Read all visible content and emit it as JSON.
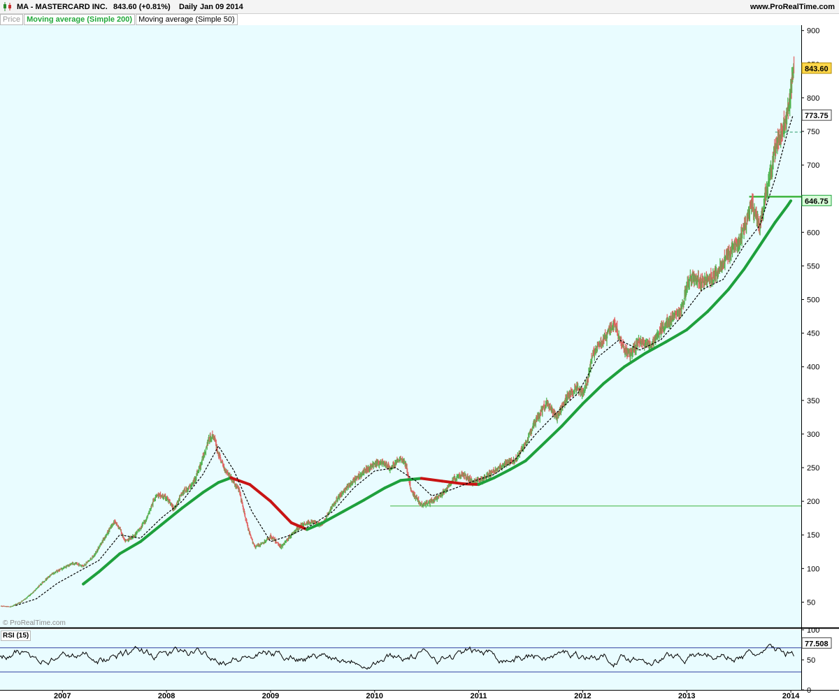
{
  "header": {
    "title": "MA - MASTERCARD INC.",
    "quote": "843.60 (+0.81%)",
    "period": "Daily",
    "date": "Jan 09 2014",
    "site": "www.ProRealTime.com"
  },
  "legend": {
    "price": "Price",
    "ma200": "Moving average (Simple 200)",
    "ma50": "Moving average (Simple 50)"
  },
  "copyright": "© ProRealTime.com",
  "colors": {
    "background": "#e9fcff",
    "up_candle": "#4fb34f",
    "down_candle": "#e06060",
    "ma200_rising": "#1ea03c",
    "ma200_falling": "#c81414",
    "ma50": "#000000",
    "level_line": "#3cb43c",
    "last_price_tag": "#ffd84a",
    "ma50_tag": "#ffffff",
    "ma200_tag": "#d8ffd8"
  },
  "chart_data": [
    {
      "type": "candlestick",
      "title": "MA - MASTERCARD INC.",
      "y_ticks": [
        900,
        850,
        800,
        750,
        700,
        650,
        600,
        550,
        500,
        450,
        400,
        350,
        300,
        250,
        200,
        150,
        100,
        50
      ],
      "x_ticks": [
        "2007",
        "2008",
        "2009",
        "2010",
        "2011",
        "2012",
        "2013",
        "2014"
      ],
      "ylim": [
        12,
        908
      ],
      "xlim": [
        2006.4,
        2014.1
      ],
      "price_path": [
        [
          2006.41,
          44
        ],
        [
          2006.5,
          43
        ],
        [
          2006.6,
          50
        ],
        [
          2006.7,
          62
        ],
        [
          2006.8,
          78
        ],
        [
          2006.9,
          92
        ],
        [
          2007.0,
          100
        ],
        [
          2007.1,
          108
        ],
        [
          2007.2,
          104
        ],
        [
          2007.3,
          118
        ],
        [
          2007.4,
          145
        ],
        [
          2007.5,
          170
        ],
        [
          2007.55,
          160
        ],
        [
          2007.6,
          140
        ],
        [
          2007.7,
          150
        ],
        [
          2007.8,
          172
        ],
        [
          2007.9,
          210
        ],
        [
          2008.0,
          205
        ],
        [
          2008.07,
          188
        ],
        [
          2008.15,
          212
        ],
        [
          2008.25,
          225
        ],
        [
          2008.33,
          255
        ],
        [
          2008.4,
          290
        ],
        [
          2008.45,
          298
        ],
        [
          2008.5,
          270
        ],
        [
          2008.55,
          250
        ],
        [
          2008.6,
          240
        ],
        [
          2008.7,
          215
        ],
        [
          2008.75,
          180
        ],
        [
          2008.8,
          150
        ],
        [
          2008.85,
          132
        ],
        [
          2008.95,
          140
        ],
        [
          2009.0,
          148
        ],
        [
          2009.1,
          132
        ],
        [
          2009.2,
          150
        ],
        [
          2009.3,
          165
        ],
        [
          2009.4,
          170
        ],
        [
          2009.5,
          165
        ],
        [
          2009.6,
          195
        ],
        [
          2009.7,
          215
        ],
        [
          2009.8,
          230
        ],
        [
          2009.9,
          245
        ],
        [
          2010.0,
          255
        ],
        [
          2010.08,
          258
        ],
        [
          2010.15,
          248
        ],
        [
          2010.25,
          265
        ],
        [
          2010.3,
          255
        ],
        [
          2010.35,
          215
        ],
        [
          2010.45,
          195
        ],
        [
          2010.55,
          200
        ],
        [
          2010.65,
          210
        ],
        [
          2010.75,
          232
        ],
        [
          2010.85,
          240
        ],
        [
          2010.95,
          228
        ],
        [
          2011.05,
          235
        ],
        [
          2011.15,
          245
        ],
        [
          2011.25,
          255
        ],
        [
          2011.35,
          262
        ],
        [
          2011.45,
          285
        ],
        [
          2011.55,
          320
        ],
        [
          2011.65,
          345
        ],
        [
          2011.75,
          325
        ],
        [
          2011.85,
          355
        ],
        [
          2011.95,
          370
        ],
        [
          2012.0,
          358
        ],
        [
          2012.05,
          385
        ],
        [
          2012.1,
          420
        ],
        [
          2012.2,
          440
        ],
        [
          2012.3,
          465
        ],
        [
          2012.38,
          430
        ],
        [
          2012.45,
          418
        ],
        [
          2012.55,
          440
        ],
        [
          2012.65,
          430
        ],
        [
          2012.75,
          455
        ],
        [
          2012.85,
          470
        ],
        [
          2012.95,
          485
        ],
        [
          2013.0,
          520
        ],
        [
          2013.05,
          535
        ],
        [
          2013.15,
          525
        ],
        [
          2013.25,
          532
        ],
        [
          2013.35,
          555
        ],
        [
          2013.45,
          580
        ],
        [
          2013.5,
          585
        ],
        [
          2013.58,
          618
        ],
        [
          2013.62,
          645
        ],
        [
          2013.7,
          610
        ],
        [
          2013.75,
          650
        ],
        [
          2013.8,
          685
        ],
        [
          2013.85,
          720
        ],
        [
          2013.9,
          745
        ],
        [
          2013.95,
          762
        ],
        [
          2013.98,
          790
        ],
        [
          2014.0,
          815
        ],
        [
          2014.02,
          838
        ],
        [
          2014.03,
          843.6
        ]
      ],
      "series": [
        {
          "name": "Moving average (Simple 200)",
          "values": [
            [
              2007.2,
              77
            ],
            [
              2007.35,
              95
            ],
            [
              2007.55,
              122
            ],
            [
              2007.75,
              140
            ],
            [
              2007.95,
              165
            ],
            [
              2008.15,
              190
            ],
            [
              2008.35,
              213
            ],
            [
              2008.5,
              228
            ],
            [
              2008.62,
              235
            ],
            [
              2008.8,
              225
            ],
            [
              2009.0,
              200
            ],
            [
              2009.2,
              168
            ],
            [
              2009.35,
              158
            ],
            [
              2009.5,
              168
            ],
            [
              2009.7,
              185
            ],
            [
              2009.9,
              202
            ],
            [
              2010.1,
              220
            ],
            [
              2010.25,
              231
            ],
            [
              2010.45,
              234
            ],
            [
              2010.65,
              230
            ],
            [
              2010.85,
              226
            ],
            [
              2011.0,
              225
            ],
            [
              2011.15,
              235
            ],
            [
              2011.3,
              247
            ],
            [
              2011.45,
              260
            ],
            [
              2011.6,
              282
            ],
            [
              2011.8,
              312
            ],
            [
              2012.0,
              345
            ],
            [
              2012.2,
              375
            ],
            [
              2012.4,
              400
            ],
            [
              2012.6,
              420
            ],
            [
              2012.8,
              437
            ],
            [
              2013.0,
              455
            ],
            [
              2013.2,
              482
            ],
            [
              2013.4,
              515
            ],
            [
              2013.55,
              545
            ],
            [
              2013.7,
              580
            ],
            [
              2013.85,
              615
            ],
            [
              2013.97,
              640
            ],
            [
              2014.0,
              646.75
            ]
          ]
        },
        {
          "name": "Moving average (Simple 50)",
          "values": [
            [
              2006.55,
              45
            ],
            [
              2006.75,
              55
            ],
            [
              2006.95,
              78
            ],
            [
              2007.15,
              95
            ],
            [
              2007.35,
              112
            ],
            [
              2007.55,
              150
            ],
            [
              2007.75,
              145
            ],
            [
              2007.95,
              175
            ],
            [
              2008.15,
              200
            ],
            [
              2008.35,
              240
            ],
            [
              2008.5,
              282
            ],
            [
              2008.65,
              245
            ],
            [
              2008.82,
              185
            ],
            [
              2009.0,
              140
            ],
            [
              2009.2,
              150
            ],
            [
              2009.4,
              165
            ],
            [
              2009.6,
              185
            ],
            [
              2009.8,
              220
            ],
            [
              2010.0,
              245
            ],
            [
              2010.2,
              250
            ],
            [
              2010.4,
              230
            ],
            [
              2010.55,
              208
            ],
            [
              2010.75,
              218
            ],
            [
              2010.95,
              230
            ],
            [
              2011.15,
              240
            ],
            [
              2011.35,
              262
            ],
            [
              2011.55,
              300
            ],
            [
              2011.75,
              332
            ],
            [
              2011.95,
              360
            ],
            [
              2012.15,
              415
            ],
            [
              2012.35,
              440
            ],
            [
              2012.55,
              425
            ],
            [
              2012.75,
              440
            ],
            [
              2012.95,
              475
            ],
            [
              2013.15,
              515
            ],
            [
              2013.35,
              530
            ],
            [
              2013.55,
              580
            ],
            [
              2013.7,
              610
            ],
            [
              2013.85,
              680
            ],
            [
              2013.97,
              750
            ],
            [
              2014.02,
              773.75
            ]
          ]
        },
        {
          "name": "level-high",
          "values": [
            [
              2013.6,
              653
            ],
            [
              2014.1,
              653
            ]
          ]
        },
        {
          "name": "level-support",
          "values": [
            [
              2010.15,
              193
            ],
            [
              2014.1,
              193
            ]
          ]
        },
        {
          "name": "level-dashed",
          "values": [
            [
              2013.85,
              749
            ],
            [
              2014.1,
              749
            ]
          ]
        }
      ],
      "tags": [
        {
          "label": "843.60",
          "value": 843.6
        },
        {
          "label": "773.75",
          "value": 773.75
        },
        {
          "label": "646.75",
          "value": 646.75
        }
      ]
    },
    {
      "type": "line",
      "title": "RSI (15)",
      "y_ticks": [
        100,
        50,
        0
      ],
      "ylim": [
        0,
        100
      ],
      "bands": [
        70,
        30
      ],
      "last_value": 77.508,
      "last_label": "77.508"
    }
  ]
}
